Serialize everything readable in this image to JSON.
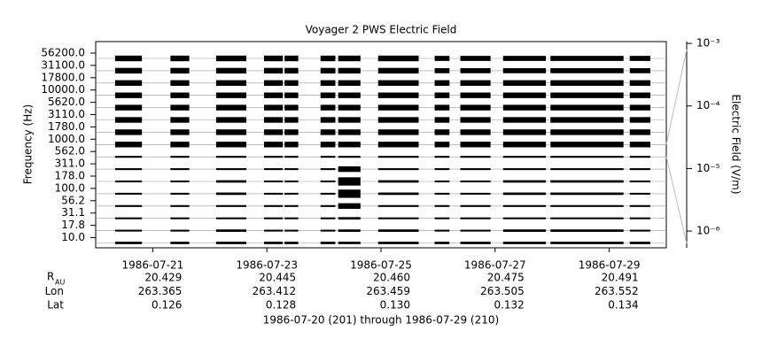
{
  "chart_data": {
    "type": "channel-strips",
    "title": "Voyager 2 PWS Electric Field",
    "ylabel": "Frequency (Hz)",
    "y2label": "Electric Field (V/m)",
    "footer": "1986-07-20 (201) through 1986-07-29 (210)",
    "xlim": [
      201,
      211
    ],
    "xticks": [
      {
        "value": 202,
        "label": "1986-07-21"
      },
      {
        "value": 204,
        "label": "1986-07-23"
      },
      {
        "value": 206,
        "label": "1986-07-25"
      },
      {
        "value": 208,
        "label": "1986-07-27"
      },
      {
        "value": 210,
        "label": "1986-07-29"
      }
    ],
    "y2lim": [
      5.4e-07,
      0.00107
    ],
    "y2log": true,
    "y2ticks": [
      {
        "value": 0.001,
        "label": "10⁻³"
      },
      {
        "value": 0.0001,
        "label": "10⁻⁴"
      },
      {
        "value": 1e-05,
        "label": "10⁻⁵"
      },
      {
        "value": 1e-06,
        "label": "10⁻⁶"
      }
    ],
    "color": "#000000",
    "segments": [
      [
        201.34,
        201.81
      ],
      [
        202.31,
        202.64
      ],
      [
        203.11,
        203.64
      ],
      [
        203.95,
        204.28
      ],
      [
        204.31,
        204.55
      ],
      [
        204.94,
        205.2
      ],
      [
        205.25,
        205.64
      ],
      [
        205.95,
        206.66
      ],
      [
        206.94,
        207.2
      ],
      [
        207.39,
        207.92
      ],
      [
        208.14,
        208.89
      ],
      [
        208.97,
        210.25
      ],
      [
        210.36,
        210.72
      ]
    ],
    "series": [
      {
        "name": "56200.0",
        "values": [
          3e-05,
          3e-05,
          3e-05,
          3e-05,
          3e-05,
          3e-05,
          3e-05,
          3e-05,
          2e-05,
          2e-05,
          2e-05,
          2e-05,
          2e-05
        ]
      },
      {
        "name": "31100.0",
        "values": [
          3e-05,
          3e-05,
          3e-05,
          3e-05,
          3e-05,
          3e-05,
          3e-05,
          3e-05,
          2e-05,
          2e-05,
          2e-05,
          2e-05,
          2e-05
        ]
      },
      {
        "name": "17800.0",
        "values": [
          3e-05,
          3e-05,
          3e-05,
          3e-05,
          3e-05,
          3e-05,
          3e-05,
          3e-05,
          3e-05,
          3e-05,
          3e-05,
          3e-05,
          3e-05
        ]
      },
      {
        "name": "10000.0",
        "values": [
          3e-05,
          3e-05,
          3e-05,
          3e-05,
          3e-05,
          3e-05,
          3e-05,
          3e-05,
          3e-05,
          3e-05,
          3e-05,
          3e-05,
          3e-05
        ]
      },
      {
        "name": "5620.0",
        "values": [
          3e-05,
          3e-05,
          3e-05,
          3e-05,
          3e-05,
          3e-05,
          3e-05,
          3e-05,
          3e-05,
          3e-05,
          3e-05,
          3e-05,
          3e-05
        ]
      },
      {
        "name": "3110.0",
        "values": [
          3e-05,
          3e-05,
          3e-05,
          3e-05,
          3e-05,
          3e-05,
          3e-05,
          3e-05,
          3e-05,
          3e-05,
          3e-05,
          3e-05,
          3e-05
        ]
      },
      {
        "name": "1780.0",
        "values": [
          3e-05,
          3e-05,
          3e-05,
          3e-05,
          3e-05,
          3e-05,
          3e-05,
          3e-05,
          3e-05,
          3e-05,
          3e-05,
          3e-05,
          3e-05
        ]
      },
      {
        "name": "1000.0",
        "values": [
          3e-05,
          3e-05,
          3e-05,
          3e-05,
          3e-05,
          3e-05,
          3e-05,
          3e-05,
          3e-05,
          3e-05,
          3e-05,
          3e-05,
          3e-05
        ]
      },
      {
        "name": "562.0",
        "values": [
          2e-06,
          2e-06,
          2e-06,
          2e-06,
          2e-06,
          2e-06,
          2e-06,
          2e-06,
          2e-06,
          2e-06,
          2e-06,
          2e-06,
          2e-06
        ]
      },
      {
        "name": "311.0",
        "values": [
          2e-06,
          2e-06,
          2e-06,
          2e-06,
          2e-06,
          2e-06,
          3e-05,
          2e-06,
          2e-06,
          2e-06,
          2e-06,
          2e-06,
          2e-06
        ]
      },
      {
        "name": "178.0",
        "values": [
          2e-06,
          2e-06,
          3e-06,
          2e-06,
          2e-06,
          2e-06,
          0.0002,
          3e-06,
          2e-06,
          2e-06,
          3e-06,
          3e-06,
          2e-06
        ]
      },
      {
        "name": "100.0",
        "values": [
          2e-06,
          2e-06,
          3e-06,
          2e-06,
          2e-06,
          2e-06,
          0.0002,
          3e-06,
          2e-06,
          2e-06,
          3e-06,
          3e-06,
          2e-06
        ]
      },
      {
        "name": "56.2",
        "values": [
          2e-06,
          2e-06,
          2e-06,
          2e-06,
          2e-06,
          2e-06,
          3e-05,
          2e-06,
          2e-06,
          2e-06,
          2e-06,
          2e-06,
          2e-06
        ]
      },
      {
        "name": "31.1",
        "values": [
          2e-06,
          2e-06,
          2e-06,
          2e-06,
          2e-06,
          2e-06,
          3e-06,
          2e-06,
          2e-06,
          2e-06,
          2e-06,
          2e-06,
          2e-06
        ]
      },
      {
        "name": "17.8",
        "values": [
          2e-06,
          2e-06,
          3e-06,
          2e-06,
          2e-06,
          2e-06,
          3e-06,
          3e-06,
          2e-06,
          2e-06,
          3e-06,
          3e-06,
          2e-06
        ]
      },
      {
        "name": "10.0",
        "values": [
          3e-06,
          3e-06,
          3e-06,
          3e-06,
          3e-06,
          3e-06,
          3e-06,
          3e-06,
          3e-06,
          3e-06,
          3e-06,
          3e-06,
          3e-06
        ]
      }
    ]
  },
  "ephemeris": [
    {
      "label": "R",
      "sub": "AU",
      "values": [
        "20.429",
        "20.445",
        "20.460",
        "20.475",
        "20.491"
      ]
    },
    {
      "label": "Lon",
      "values": [
        "263.365",
        "263.412",
        "263.459",
        "263.505",
        "263.552"
      ]
    },
    {
      "label": "Lat",
      "values": [
        "0.126",
        "0.128",
        "0.130",
        "0.132",
        "0.134"
      ]
    }
  ]
}
